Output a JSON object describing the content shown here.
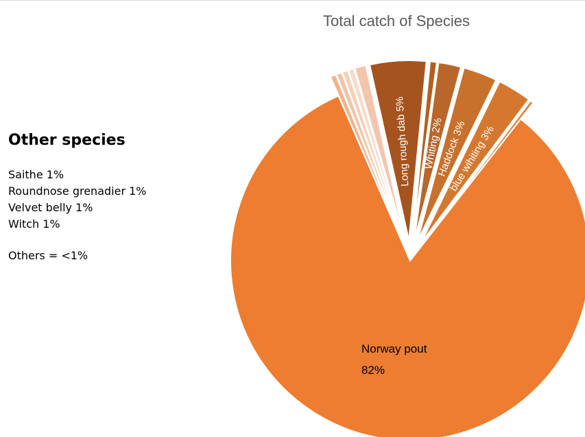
{
  "chart_data": {
    "type": "pie",
    "title": "Total catch of Species",
    "slices": [
      {
        "label": "Norway pout",
        "value": 82,
        "display": "82%",
        "color": "#ED7D31",
        "exploded": false
      },
      {
        "label": "",
        "value": 0.5,
        "display": "",
        "color": "#f1b38e",
        "exploded": true
      },
      {
        "label": "",
        "value": 0.5,
        "display": "",
        "color": "#f3c3a6",
        "exploded": true
      },
      {
        "label": "",
        "value": 0.5,
        "display": "",
        "color": "#f5cfb8",
        "exploded": true
      },
      {
        "label": "",
        "value": 0.5,
        "display": "",
        "color": "#f7dccb",
        "exploded": true
      },
      {
        "label": "",
        "value": 1,
        "display": "",
        "color": "#f2c6ad",
        "exploded": true
      },
      {
        "label": "Long rough dab",
        "value": 5,
        "display": "Long rough dab 5%",
        "color": "#A5541F",
        "exploded": true
      },
      {
        "label": "",
        "value": 0.6,
        "display": "",
        "color": "#b3601f",
        "exploded": true
      },
      {
        "label": "Whiting",
        "value": 2,
        "display": "Whiting 2%",
        "color": "#B9662A",
        "exploded": true
      },
      {
        "label": "Haddock",
        "value": 3,
        "display": "Haddock 3%",
        "color": "#C8712C",
        "exploded": true
      },
      {
        "label": "blue wihiting",
        "value": 3,
        "display": "blue wihiting 3%",
        "color": "#D5782F",
        "exploded": true
      },
      {
        "label": "",
        "value": 0.3,
        "display": "",
        "color": "#e0803a",
        "exploded": true
      }
    ]
  },
  "legend": {
    "heading": "Other species",
    "items": [
      "Saithe 1%",
      "Roundnose grenadier 1%",
      "Velvet belly 1%",
      "Witch  1%"
    ],
    "note": "Others = <1%"
  }
}
